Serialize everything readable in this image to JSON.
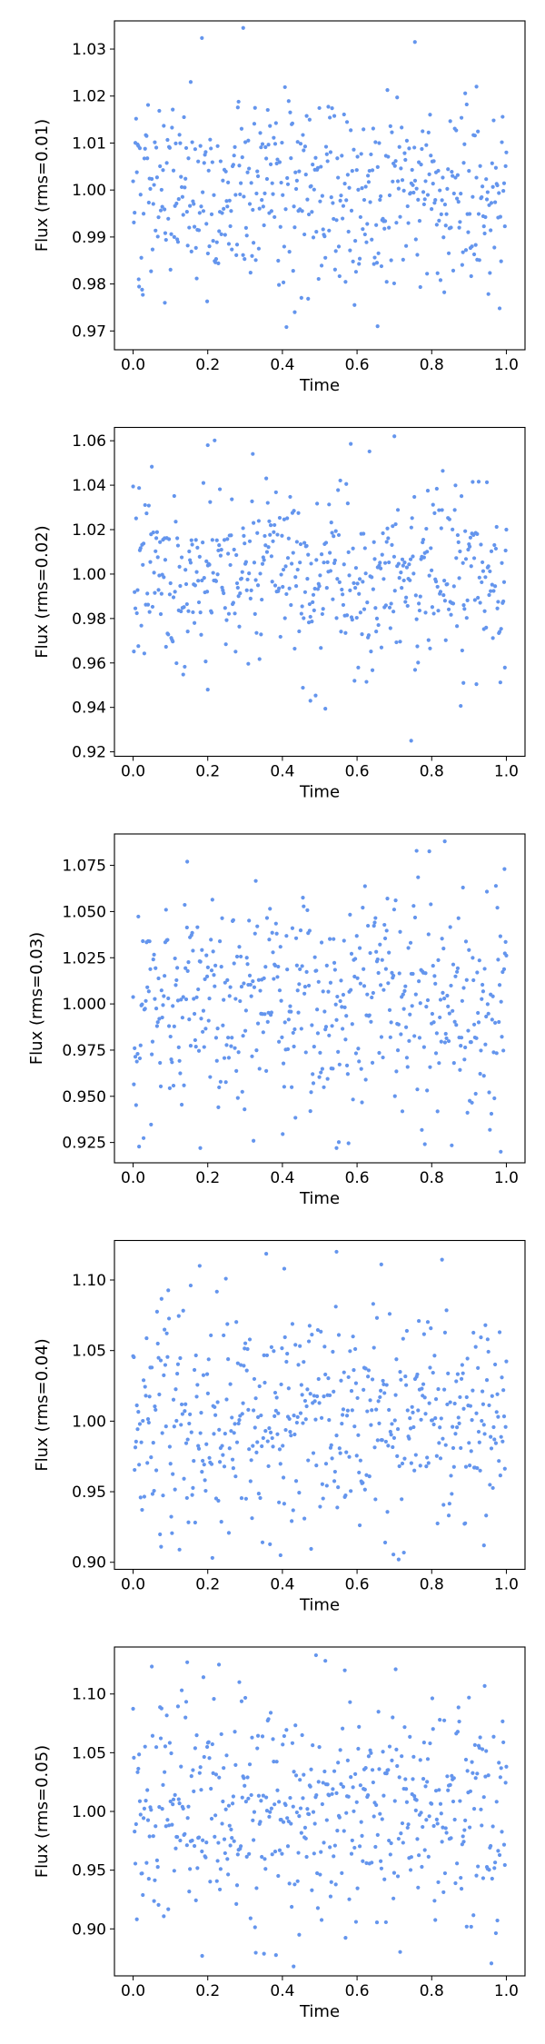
{
  "chart_data": [
    {
      "type": "scatter",
      "xlabel": "Time",
      "ylabel": "Flux (rms=0.01)",
      "rms": 0.01,
      "xlim": [
        -0.05,
        1.05
      ],
      "ylim": [
        0.966,
        1.036
      ],
      "xticks": [
        0.0,
        0.2,
        0.4,
        0.6,
        0.8,
        1.0
      ],
      "xtick_labels": [
        "0.0",
        "0.2",
        "0.4",
        "0.6",
        "0.8",
        "1.0"
      ],
      "yticks": [
        0.97,
        0.98,
        0.99,
        1.0,
        1.01,
        1.02,
        1.03
      ],
      "ytick_labels": [
        "0.97",
        "0.98",
        "0.99",
        "1.00",
        "1.01",
        "1.02",
        "1.03"
      ],
      "n_points": 500,
      "color": "#6495ED",
      "seed": 101,
      "highlights": [
        [
          0.295,
          1.0345
        ],
        [
          0.755,
          1.0315
        ],
        [
          0.433,
          0.974
        ],
        [
          0.655,
          0.971
        ],
        [
          0.015,
          0.981
        ],
        [
          0.085,
          0.976
        ],
        [
          0.92,
          1.022
        ]
      ]
    },
    {
      "type": "scatter",
      "xlabel": "Time",
      "ylabel": "Flux (rms=0.02)",
      "rms": 0.02,
      "xlim": [
        -0.05,
        1.05
      ],
      "ylim": [
        0.918,
        1.066
      ],
      "xticks": [
        0.0,
        0.2,
        0.4,
        0.6,
        0.8,
        1.0
      ],
      "xtick_labels": [
        "0.0",
        "0.2",
        "0.4",
        "0.6",
        "0.8",
        "1.0"
      ],
      "yticks": [
        0.92,
        0.94,
        0.96,
        0.98,
        1.0,
        1.02,
        1.04,
        1.06
      ],
      "ytick_labels": [
        "0.92",
        "0.94",
        "0.96",
        "0.98",
        "1.00",
        "1.02",
        "1.04",
        "1.06"
      ],
      "n_points": 500,
      "color": "#6495ED",
      "seed": 202,
      "highlights": [
        [
          0.7,
          1.062
        ],
        [
          0.2,
          1.058
        ],
        [
          0.745,
          0.925
        ],
        [
          0.475,
          0.943
        ],
        [
          0.2,
          0.948
        ],
        [
          0.885,
          0.951
        ]
      ]
    },
    {
      "type": "scatter",
      "xlabel": "Time",
      "ylabel": "Flux (rms=0.03)",
      "rms": 0.03,
      "xlim": [
        -0.05,
        1.05
      ],
      "ylim": [
        0.914,
        1.092
      ],
      "xticks": [
        0.0,
        0.2,
        0.4,
        0.6,
        0.8,
        1.0
      ],
      "xtick_labels": [
        "0.0",
        "0.2",
        "0.4",
        "0.6",
        "0.8",
        "1.0"
      ],
      "yticks": [
        0.925,
        0.95,
        0.975,
        1.0,
        1.025,
        1.05,
        1.075
      ],
      "ytick_labels": [
        "0.925",
        "0.950",
        "0.975",
        "1.000",
        "1.025",
        "1.050",
        "1.075"
      ],
      "n_points": 500,
      "color": "#6495ED",
      "seed": 303,
      "highlights": [
        [
          0.835,
          1.088
        ],
        [
          0.145,
          1.077
        ],
        [
          0.995,
          1.073
        ],
        [
          0.18,
          0.922
        ],
        [
          0.545,
          0.922
        ],
        [
          0.985,
          0.92
        ]
      ]
    },
    {
      "type": "scatter",
      "xlabel": "Time",
      "ylabel": "Flux (rms=0.04)",
      "rms": 0.04,
      "xlim": [
        -0.05,
        1.05
      ],
      "ylim": [
        0.895,
        1.128
      ],
      "xticks": [
        0.0,
        0.2,
        0.4,
        0.6,
        0.8,
        1.0
      ],
      "xtick_labels": [
        "0.0",
        "0.2",
        "0.4",
        "0.6",
        "0.8",
        "1.0"
      ],
      "yticks": [
        0.9,
        0.95,
        1.0,
        1.05,
        1.1
      ],
      "ytick_labels": [
        "0.90",
        "0.95",
        "1.00",
        "1.05",
        "1.10"
      ],
      "n_points": 500,
      "color": "#6495ED",
      "seed": 404,
      "highlights": [
        [
          0.545,
          1.12
        ],
        [
          0.665,
          1.111
        ],
        [
          0.395,
          0.905
        ],
        [
          0.075,
          0.911
        ],
        [
          0.94,
          0.912
        ],
        [
          0.405,
          1.108
        ]
      ]
    },
    {
      "type": "scatter",
      "xlabel": "Time",
      "ylabel": "Flux (rms=0.05)",
      "rms": 0.05,
      "xlim": [
        -0.05,
        1.05
      ],
      "ylim": [
        0.86,
        1.14
      ],
      "xticks": [
        0.0,
        0.2,
        0.4,
        0.6,
        0.8,
        1.0
      ],
      "xtick_labels": [
        "0.0",
        "0.2",
        "0.4",
        "0.6",
        "0.8",
        "1.0"
      ],
      "yticks": [
        0.9,
        0.95,
        1.0,
        1.05,
        1.1
      ],
      "ytick_labels": [
        "0.90",
        "0.95",
        "1.00",
        "1.05",
        "1.10"
      ],
      "n_points": 500,
      "color": "#6495ED",
      "seed": 505,
      "highlights": [
        [
          0.49,
          1.133
        ],
        [
          0.23,
          1.125
        ],
        [
          0.145,
          1.127
        ],
        [
          0.43,
          0.868
        ],
        [
          0.185,
          0.877
        ],
        [
          0.445,
          0.895
        ]
      ]
    }
  ]
}
